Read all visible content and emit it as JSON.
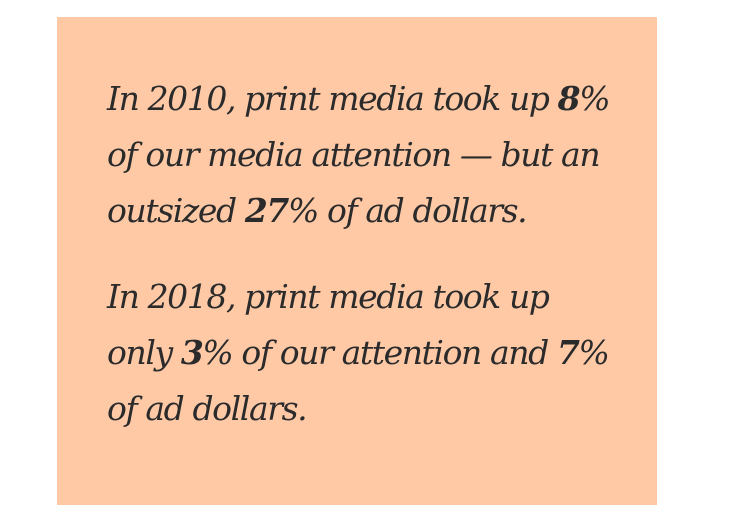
{
  "paragraphs": [
    {
      "lines": [
        {
          "a": "In 2010, print media took up ",
          "num": "8",
          "b": "%"
        },
        {
          "a": "of our media attention — but an",
          "num": "",
          "b": ""
        },
        {
          "a": "outsized ",
          "num": "27",
          "b": "% of ad dollars."
        }
      ]
    },
    {
      "lines": [
        {
          "a": "In 2018, print media took up",
          "num": "",
          "b": ""
        },
        {
          "a": "only ",
          "num": "3",
          "b": "% of our attention and ",
          "num2": "7",
          "c": "%"
        },
        {
          "a": "of ad dollars.",
          "num": "",
          "b": ""
        }
      ]
    }
  ],
  "colors": {
    "card_background": "#ffc9a6",
    "text": "#2b2b2b"
  }
}
